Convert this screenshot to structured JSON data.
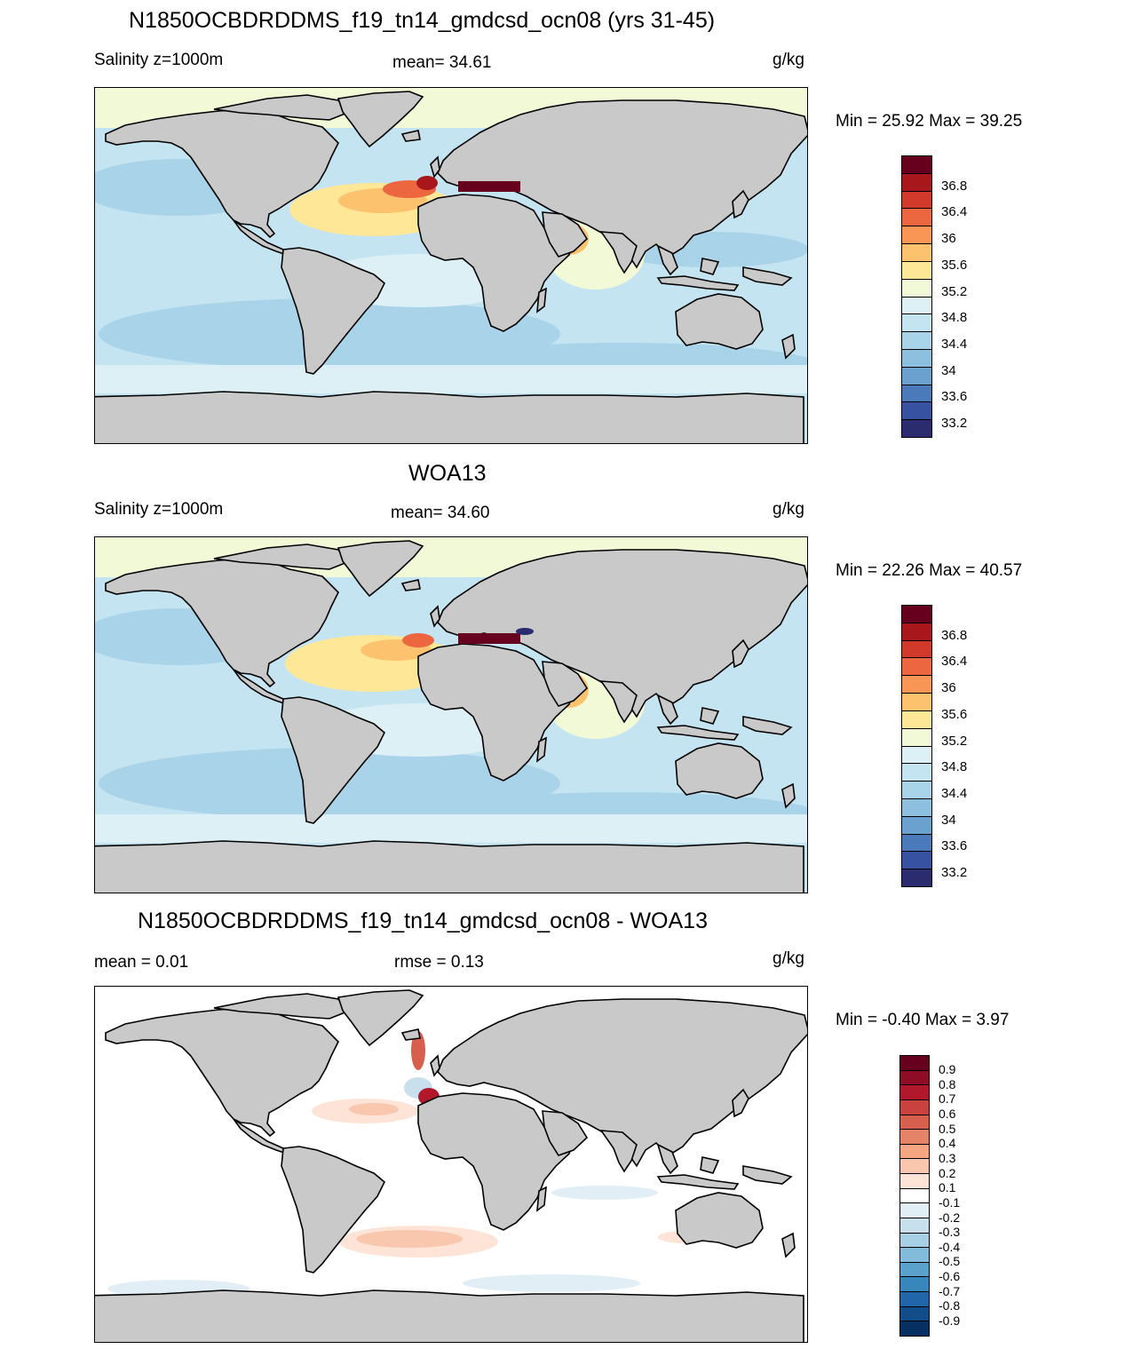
{
  "colors": {
    "land": "#c9c9c9",
    "coast": "#000000"
  },
  "panels": [
    {
      "title": "N1850OCBDRDDMS_f19_tn14_gmdcsd_ocn08 (yrs 31-45)",
      "left_label": "Salinity z=1000m",
      "center_label": "mean=  34.61",
      "units": "g/kg",
      "minmax": "Min =  25.92 Max =  39.25",
      "colorbar_labels": [
        "36.8",
        "36.4",
        "36",
        "35.6",
        "35.2",
        "34.8",
        "34.4",
        "34",
        "33.6",
        "33.2"
      ],
      "colorbar_colors": [
        "#67001f",
        "#a7171c",
        "#d13a2b",
        "#ec6640",
        "#f99656",
        "#fdc26d",
        "#fee797",
        "#f2f9d6",
        "#dcf0f6",
        "#c4e4f1",
        "#a9d3e9",
        "#8cc0de",
        "#6aa1cf",
        "#4a7ab9",
        "#3652a0",
        "#2b2b70"
      ]
    },
    {
      "title": "WOA13",
      "left_label": "Salinity z=1000m",
      "center_label": "mean=  34.60",
      "units": "g/kg",
      "minmax": "Min =  22.26 Max =  40.57",
      "colorbar_labels": [
        "36.8",
        "36.4",
        "36",
        "35.6",
        "35.2",
        "34.8",
        "34.4",
        "34",
        "33.6",
        "33.2"
      ],
      "colorbar_colors": [
        "#67001f",
        "#a7171c",
        "#d13a2b",
        "#ec6640",
        "#f99656",
        "#fdc26d",
        "#fee797",
        "#f2f9d6",
        "#dcf0f6",
        "#c4e4f1",
        "#a9d3e9",
        "#8cc0de",
        "#6aa1cf",
        "#4a7ab9",
        "#3652a0",
        "#2b2b70"
      ]
    },
    {
      "title": "N1850OCBDRDDMS_f19_tn14_gmdcsd_ocn08 - WOA13",
      "left_label": "mean =   0.01",
      "center_label": "rmse =   0.13",
      "units": "g/kg",
      "minmax": "Min =  -0.40 Max =   3.97",
      "colorbar_labels": [
        "0.9",
        "0.8",
        "0.7",
        "0.6",
        "0.5",
        "0.4",
        "0.3",
        "0.2",
        "0.1",
        "-0.1",
        "-0.2",
        "-0.3",
        "-0.4",
        "-0.5",
        "-0.6",
        "-0.7",
        "-0.8",
        "-0.9"
      ],
      "colorbar_colors": [
        "#67001f",
        "#8e0c25",
        "#b2182b",
        "#c9423e",
        "#d6604d",
        "#e58368",
        "#f4a582",
        "#f9c7ad",
        "#fde4d6",
        "#ffffff",
        "#e1eef5",
        "#c8e0ee",
        "#a8d0e4",
        "#82bcda",
        "#5aa2cc",
        "#3787bd",
        "#2066a8",
        "#124d8a",
        "#053061"
      ]
    }
  ]
}
